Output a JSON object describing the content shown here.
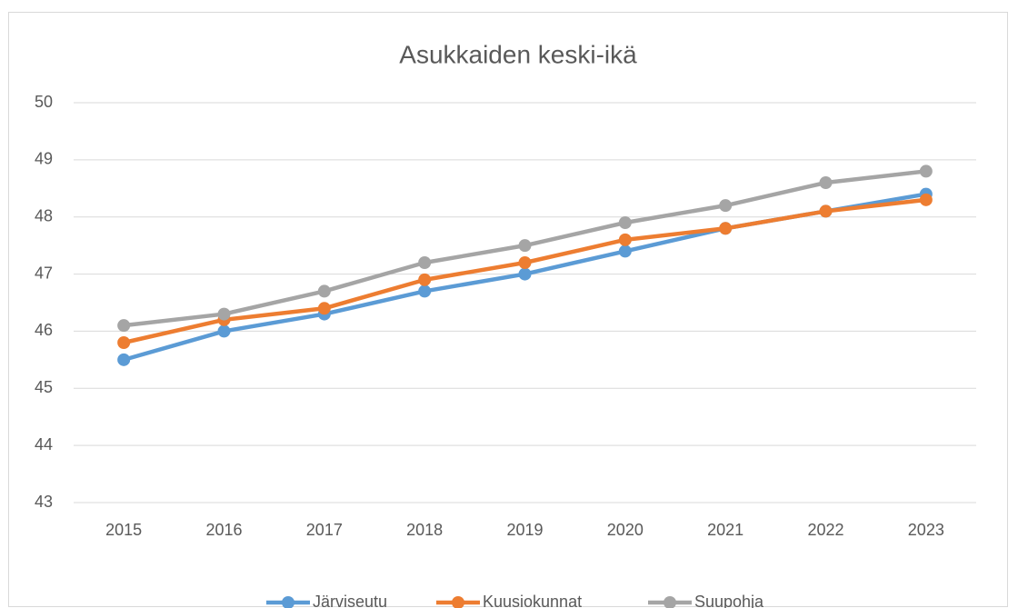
{
  "chart_data": {
    "type": "line",
    "title": "Asukkaiden keski-ikä",
    "categories": [
      "2015",
      "2016",
      "2017",
      "2018",
      "2019",
      "2020",
      "2021",
      "2022",
      "2023"
    ],
    "series": [
      {
        "name": "Järviseutu",
        "color": "#5b9bd5",
        "values": [
          45.5,
          46.0,
          46.3,
          46.7,
          47.0,
          47.4,
          47.8,
          48.1,
          48.4
        ]
      },
      {
        "name": "Kuusiokunnat",
        "color": "#ed7d31",
        "values": [
          45.8,
          46.2,
          46.4,
          46.9,
          47.2,
          47.6,
          47.8,
          48.1,
          48.3
        ]
      },
      {
        "name": "Suupohja",
        "color": "#a5a5a5",
        "values": [
          46.1,
          46.3,
          46.7,
          47.2,
          47.5,
          47.9,
          48.2,
          48.6,
          48.8
        ]
      }
    ],
    "ylim": [
      43,
      50
    ],
    "yticks": [
      43,
      44,
      45,
      46,
      47,
      48,
      49,
      50
    ],
    "grid": true,
    "legend": "bottom"
  }
}
